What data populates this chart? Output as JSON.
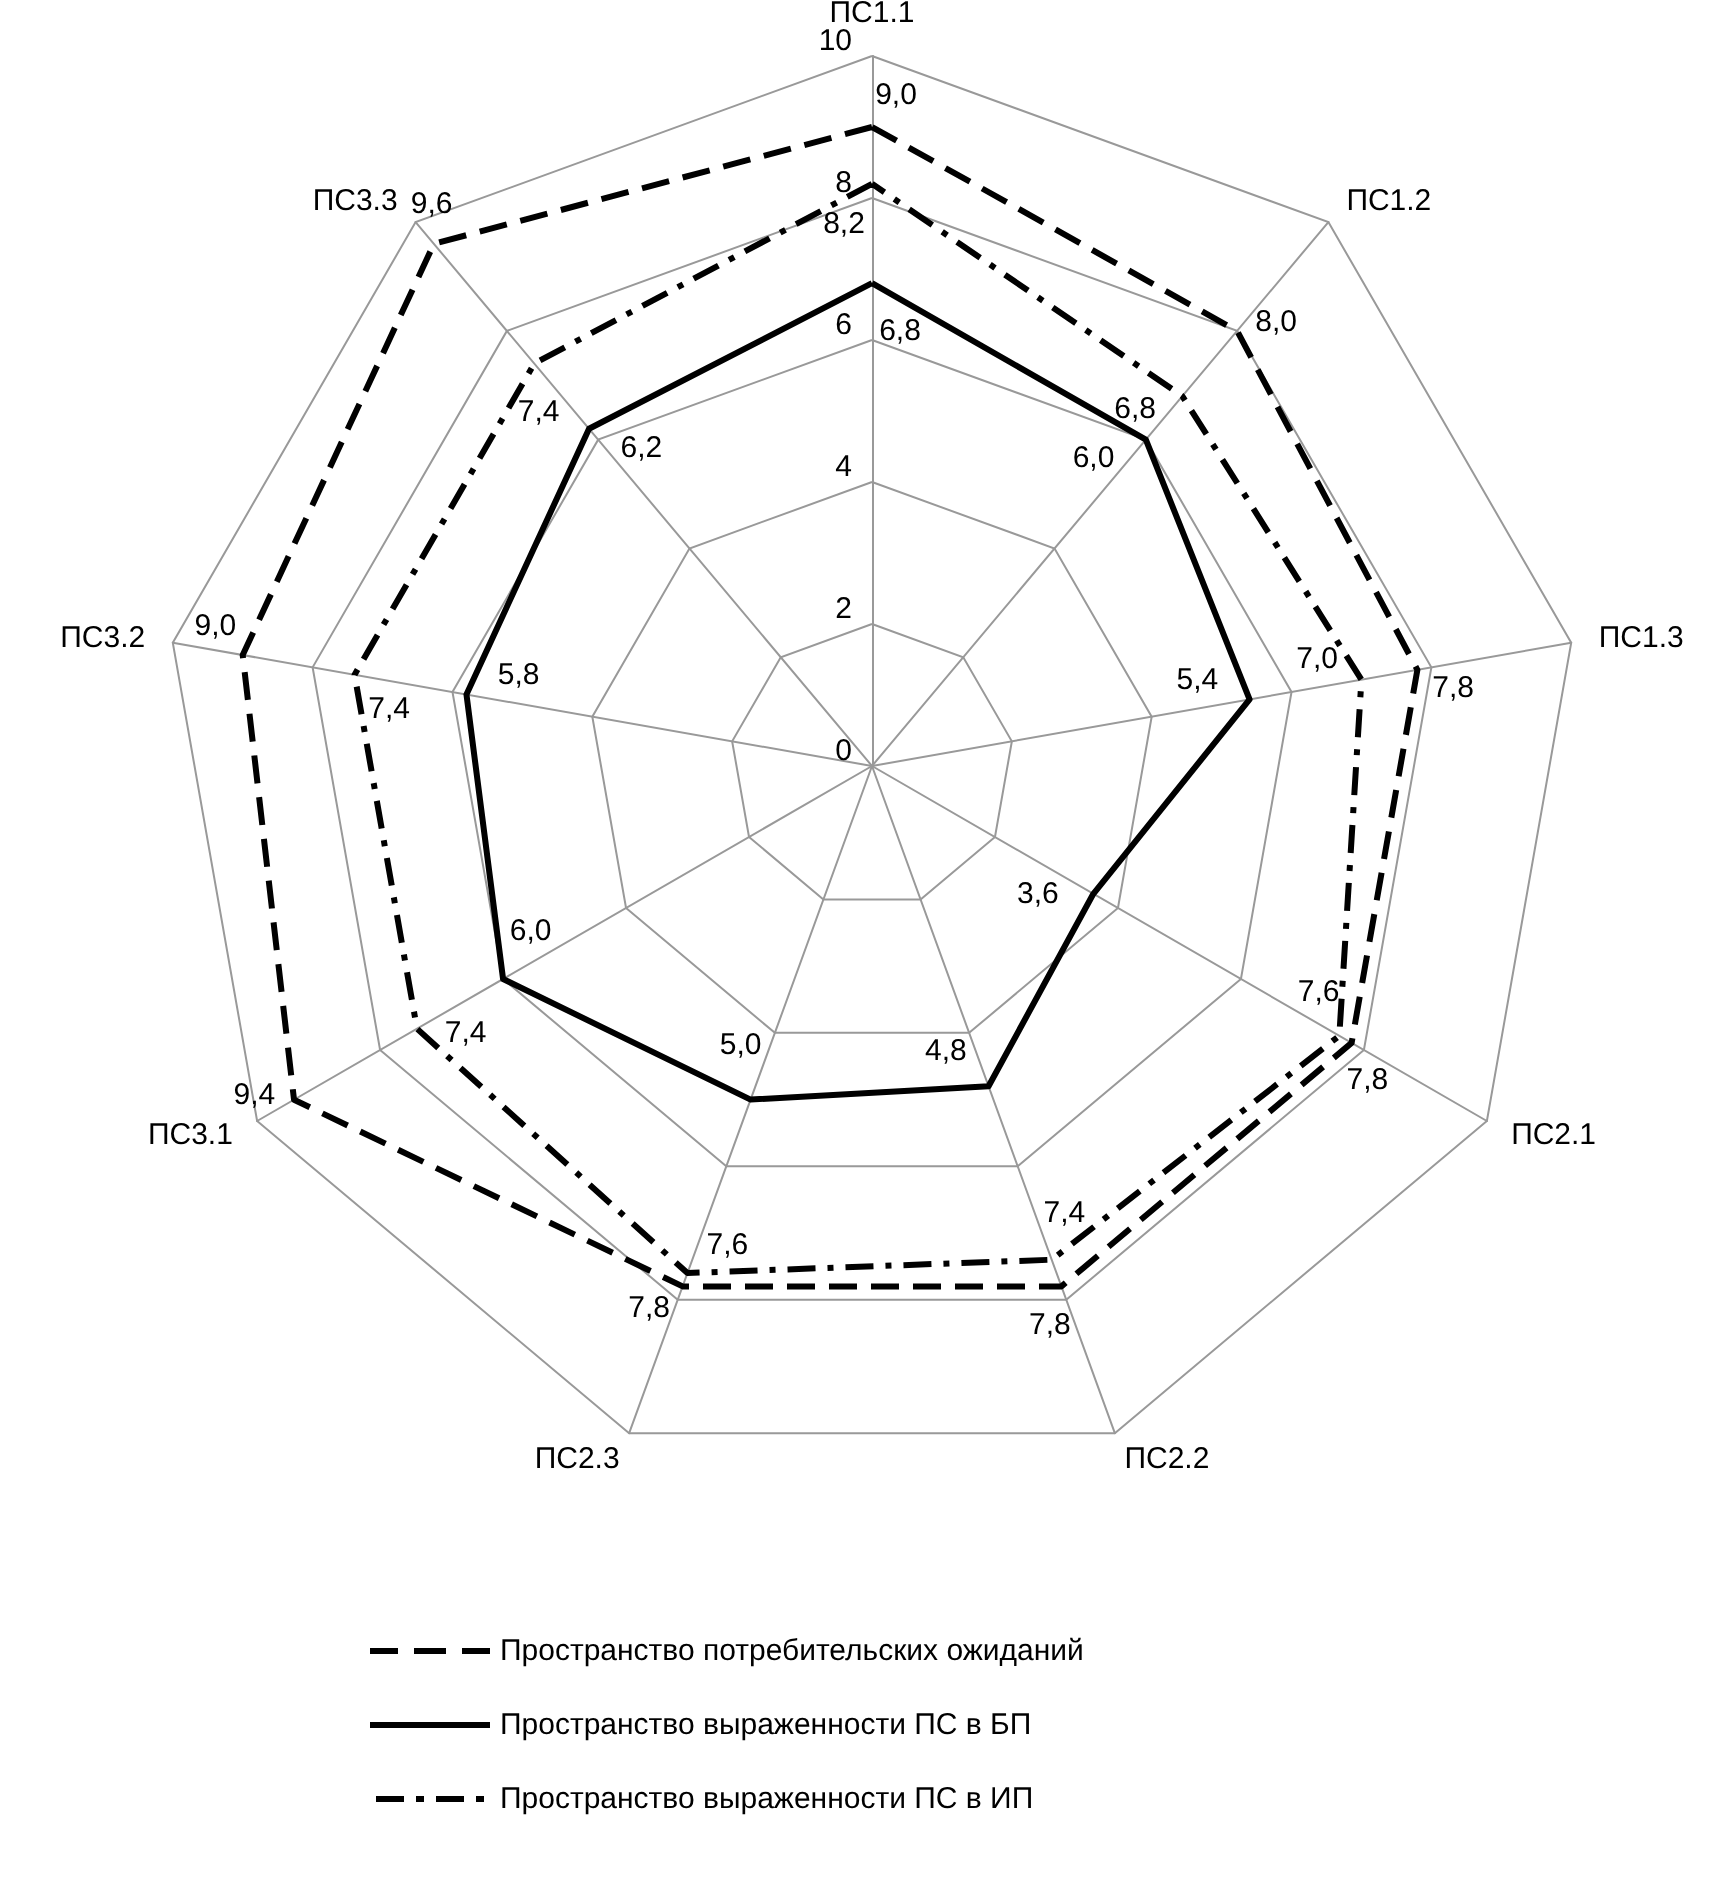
{
  "chart_data": {
    "type": "radar",
    "categories": [
      "ПС1.1",
      "ПС1.2",
      "ПС1.3",
      "ПС2.1",
      "ПС2.2",
      "ПС2.3",
      "ПС3.1",
      "ПС3.2",
      "ПС3.3"
    ],
    "series": [
      {
        "name": "Пространство потребительских ожиданий",
        "color": "#000000",
        "line_style": "dashed",
        "values": [
          9.0,
          8.0,
          7.8,
          7.8,
          7.8,
          7.8,
          9.4,
          9.0,
          9.6
        ],
        "value_labels": [
          "9,0",
          "8,0",
          "7,8",
          "7,8",
          "7,8",
          "7,8",
          "9,4",
          "9,0",
          "9,6"
        ]
      },
      {
        "name": "Пространство выраженности ПС в БП",
        "color": "#000000",
        "line_style": "solid",
        "values": [
          6.8,
          6.0,
          5.4,
          3.6,
          4.8,
          5.0,
          6.0,
          5.8,
          6.2
        ],
        "value_labels": [
          "6,8",
          "6,0",
          "5,4",
          "3,6",
          "4,8",
          "5,0",
          "6,0",
          "5,8",
          "6,2"
        ]
      },
      {
        "name": "Пространство выраженности ПС в ИП",
        "color": "#000000",
        "line_style": "dashdot",
        "values": [
          8.2,
          6.8,
          7.0,
          7.6,
          7.4,
          7.6,
          7.4,
          7.4,
          7.4
        ],
        "value_labels": [
          "8,2",
          "6,8",
          "7,0",
          "7,6",
          "7,4",
          "7,6",
          "7,4",
          "7,4",
          "7,4"
        ]
      }
    ],
    "ylim": [
      0,
      10
    ],
    "yticks": [
      0,
      2,
      4,
      6,
      8,
      10
    ],
    "legend": "bottom",
    "marker": "none",
    "grid": true
  }
}
